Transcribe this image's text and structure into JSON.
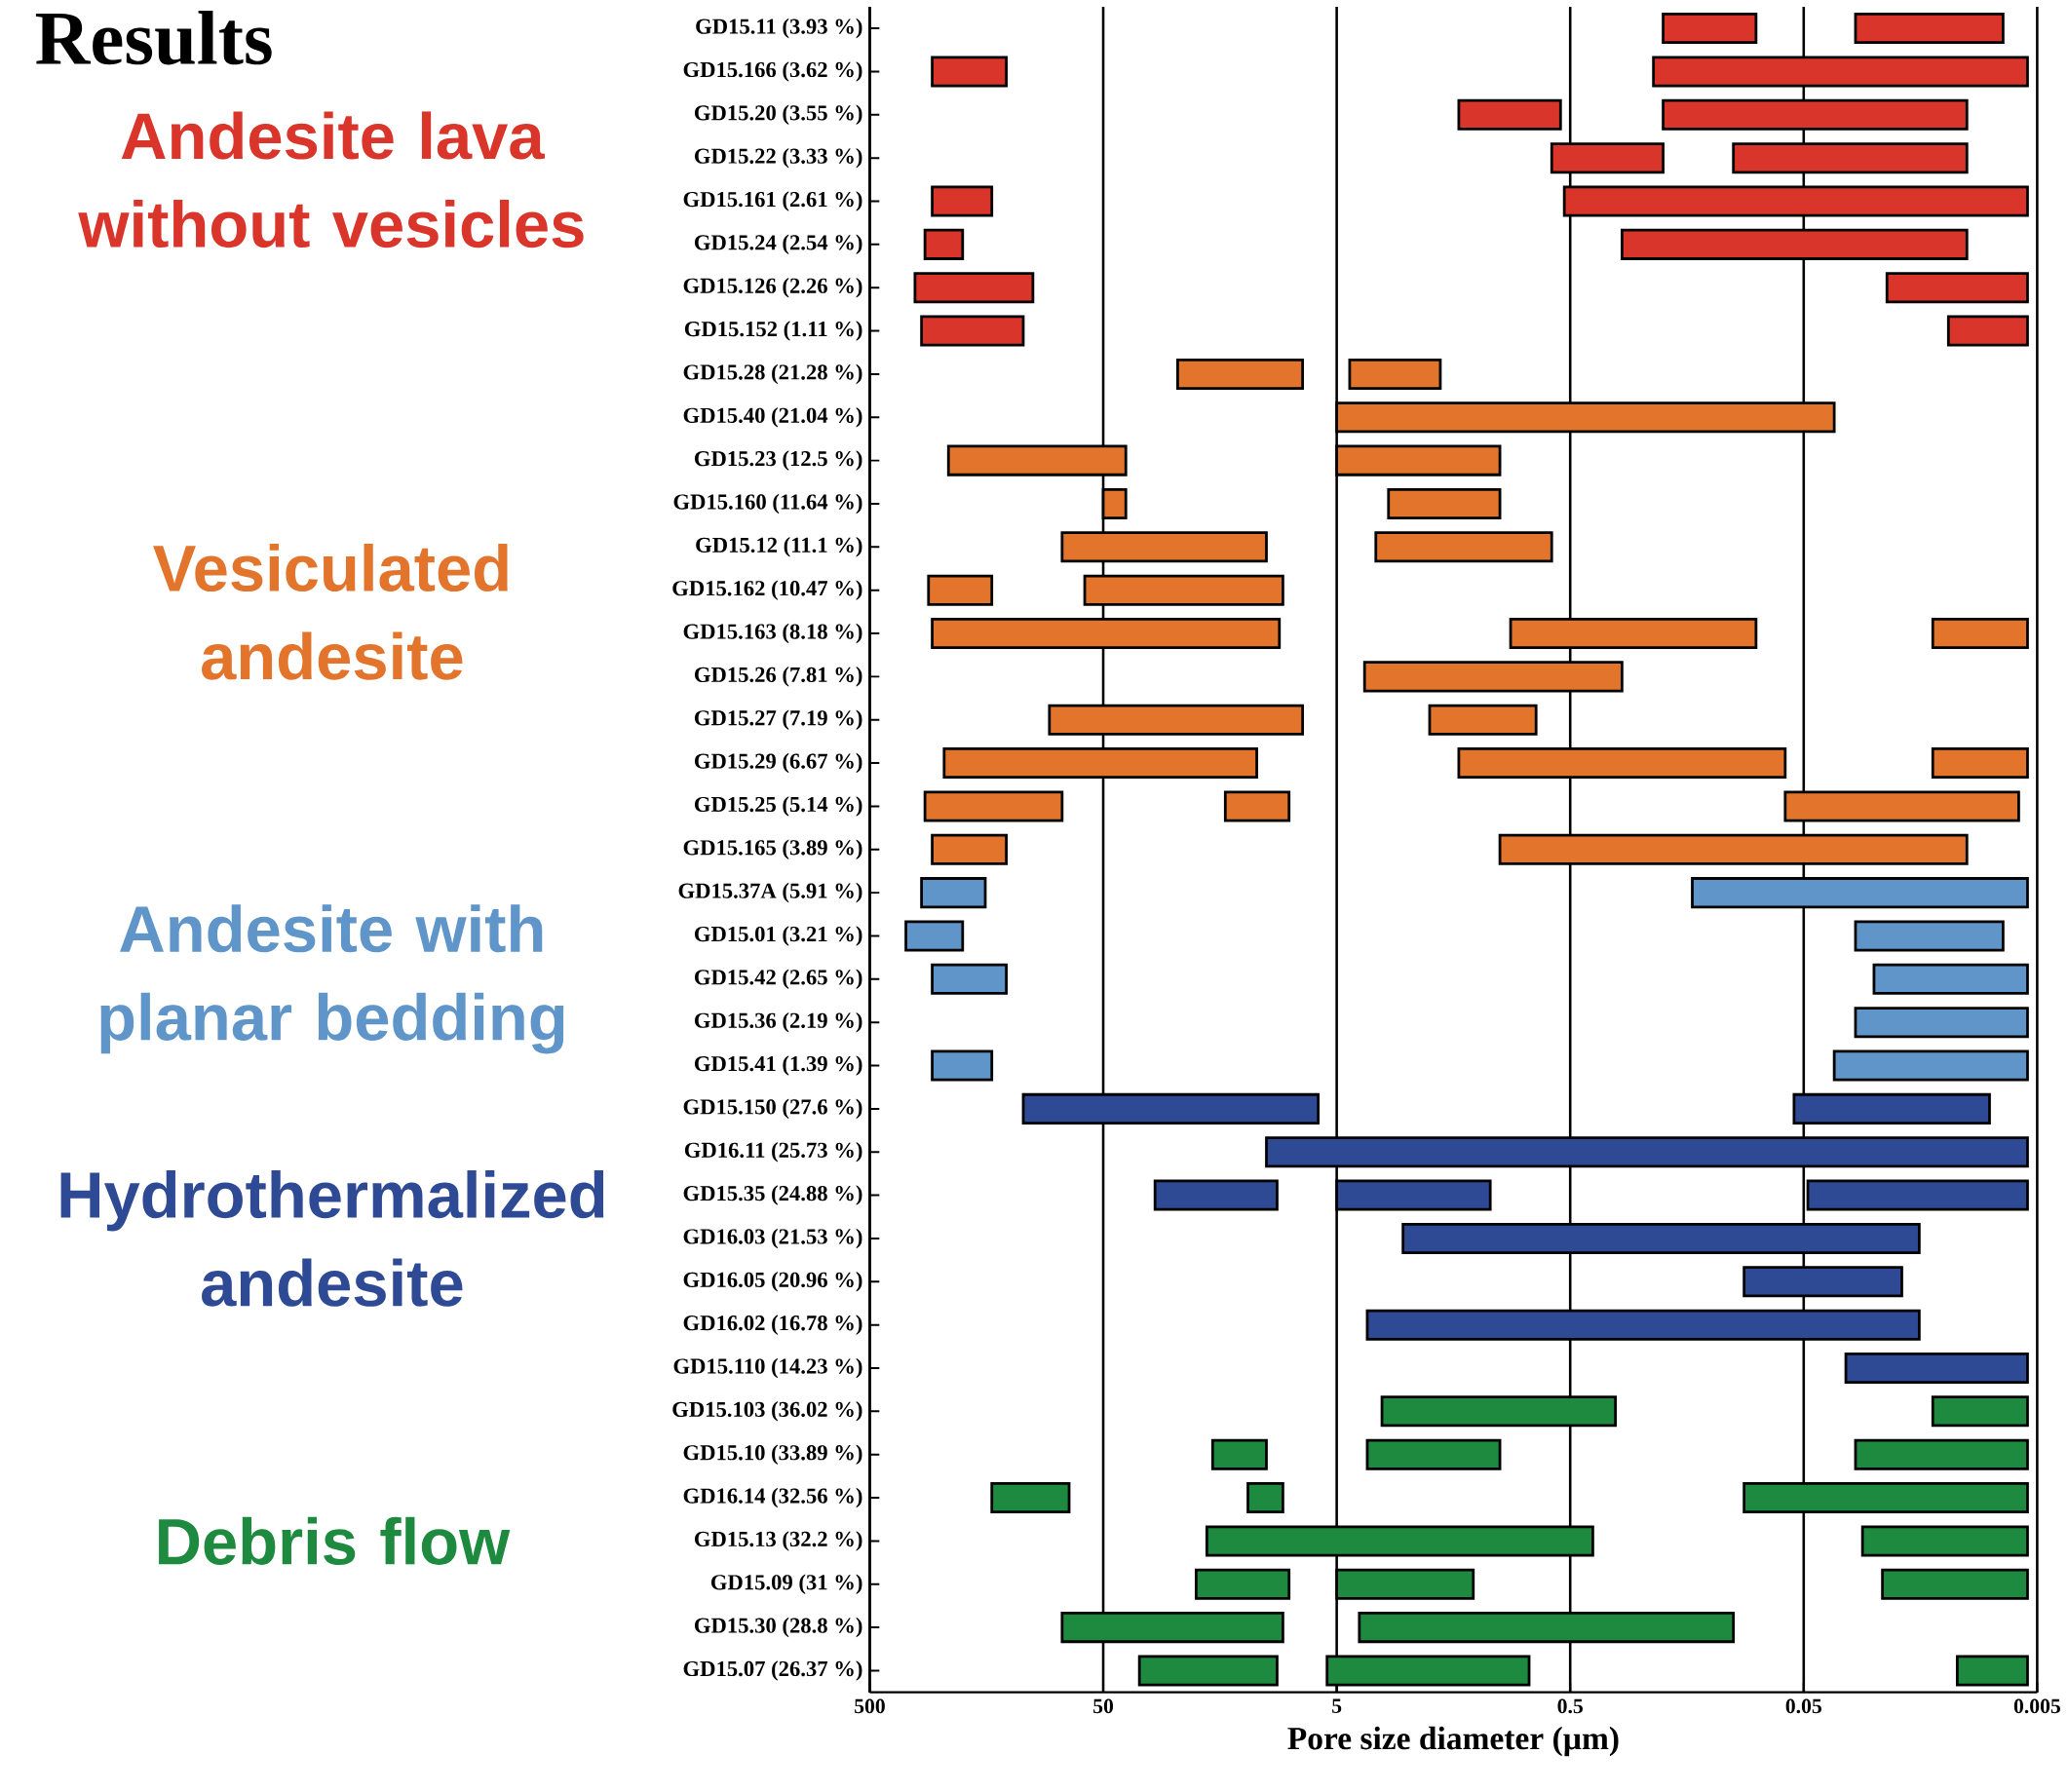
{
  "chart_data": {
    "type": "bar",
    "orientation": "horizontal",
    "title": "Results",
    "xlabel": "Pore size diameter (µm)",
    "categories": [
      "GD15.11 (3.93 %)",
      "GD15.166 (3.62 %)",
      "GD15.20 (3.55 %)",
      "GD15.22 (3.33 %)",
      "GD15.161 (2.61 %)",
      "GD15.24 (2.54 %)",
      "GD15.126 (2.26 %)",
      "GD15.152 (1.11 %)",
      "GD15.28 (21.28 %)",
      "GD15.40 (21.04 %)",
      "GD15.23 (12.5 %)",
      "GD15.160 (11.64 %)",
      "GD15.12 (11.1 %)",
      "GD15.162 (10.47 %)",
      "GD15.163 (8.18 %)",
      "GD15.26 (7.81 %)",
      "GD15.27 (7.19 %)",
      "GD15.29 (6.67 %)",
      "GD15.25 (5.14 %)",
      "GD15.165 (3.89 %)",
      "GD15.37A  (5.91 %)",
      "GD15.01 (3.21 %)",
      "GD15.42 (2.65 %)",
      "GD15.36 (2.19 %)",
      "GD15.41 (1.39 %)",
      "GD15.150 (27.6 %)",
      "GD16.11 (25.73 %)",
      "GD15.35 (24.88 %)",
      "GD16.03 (21.53 %)",
      "GD16.05 (20.96 %)",
      "GD16.02 (16.78 %)",
      "GD15.110 (14.23 %)",
      "GD15.103 (36.02 %)",
      "GD15.10 (33.89 %)",
      "GD16.14 (32.56 %)",
      "GD15.13 (32.2 %)",
      "GD15.09 (31 %)",
      "GD15.30 (28.8 %)",
      "GD15.07 (26.37 %)"
    ],
    "series": [
      {
        "colors": [
          "#d9352b",
          "#d9352b",
          "#d9352b",
          "#d9352b",
          "#d9352b",
          "#d9352b",
          "#d9352b",
          "#d9352b",
          "#e2742c",
          "#e2742c",
          "#e2742c",
          "#e2742c",
          "#e2742c",
          "#e2742c",
          "#e2742c",
          "#e2742c",
          "#e2742c",
          "#e2742c",
          "#e2742c",
          "#e2742c",
          "#5f95c9",
          "#5f95c9",
          "#5f95c9",
          "#5f95c9",
          "#5f95c9",
          "#2f4a94",
          "#2f4a94",
          "#2f4a94",
          "#2f4a94",
          "#2f4a94",
          "#2f4a94",
          "#2f4a94",
          "#1e8a3f",
          "#1e8a3f",
          "#1e8a3f",
          "#1e8a3f",
          "#1e8a3f",
          "#1e8a3f",
          "#1e8a3f"
        ],
        "base": [
          0.08,
          130,
          0.55,
          0.2,
          150,
          200,
          100,
          110,
          7,
          0.037,
          40,
          40,
          10,
          150,
          8.8,
          0.3,
          7,
          11,
          75,
          130,
          160,
          200,
          130,
          0.0055,
          150,
          6,
          0.0055,
          9,
          0.016,
          0.019,
          0.016,
          0.0055,
          0.32,
          10,
          70,
          0.4,
          8,
          8.5,
          9
        ],
        "values": [
          0.12,
          140,
          0.95,
          0.4,
          120,
          90,
          220,
          190,
          17,
          4.963,
          190,
          10,
          65,
          130,
          261.2,
          3.5,
          78,
          229,
          215,
          140,
          140,
          150,
          140,
          0.0245,
          120,
          104,
          9.9945,
          21,
          2.584,
          0.071,
          3.684,
          0.0275,
          2.88,
          7,
          80,
          17.6,
          12,
          66.5,
          26
        ]
      },
      {
        "colors": [
          "#d9352b",
          "#d9352b",
          "#d9352b",
          "#d9352b",
          "#d9352b",
          "#d9352b",
          "#d9352b",
          "#d9352b",
          "#e2742c",
          "#e2742c",
          "#e2742c",
          "#e2742c",
          "#e2742c",
          "#e2742c",
          "#e2742c",
          "#e2742c",
          "#e2742c",
          "#e2742c",
          "#e2742c",
          "#e2742c",
          "#5f95c9",
          "#5f95c9",
          "#5f95c9",
          "#5f95c9",
          "#5f95c9",
          "#2f4a94",
          "#2f4a94",
          "#2f4a94",
          "#2f4a94",
          "#2f4a94",
          "#2f4a94",
          "#2f4a94",
          "#1e8a3f",
          "#1e8a3f",
          "#1e8a3f",
          "#1e8a3f",
          "#1e8a3f",
          "#1e8a3f",
          "#1e8a3f"
        ],
        "base": [
          0.007,
          0.0055,
          0.01,
          0.01,
          0.0055,
          0.01,
          0.0055,
          0.0055,
          1.8,
          null,
          1,
          1,
          0.6,
          8.5,
          0.08,
          null,
          0.7,
          0.06,
          8,
          0.01,
          0.0055,
          0.007,
          0.0055,
          null,
          0.0055,
          0.008,
          null,
          1.1,
          null,
          null,
          null,
          null,
          0.0055,
          1,
          8.5,
          0.0055,
          1.3,
          0.1,
          0.75
        ],
        "values": [
          0.023,
          0.2145,
          0.19,
          0.09,
          0.5245,
          0.29,
          0.0165,
          0.0065,
          2.6,
          null,
          4,
          2,
          2.8,
          51.5,
          0.82,
          null,
          1.3,
          1.44,
          7,
          0.99,
          0.1445,
          0.023,
          0.0195,
          null,
          0.0315,
          0.047,
          null,
          3.9,
          null,
          null,
          null,
          null,
          0.0085,
          2.7,
          3.5,
          0.0225,
          3.7,
          3.9,
          4.75
        ]
      },
      {
        "colors": [
          "#d9352b",
          "#d9352b",
          "#d9352b",
          "#d9352b",
          "#d9352b",
          "#d9352b",
          "#d9352b",
          "#d9352b",
          "#e2742c",
          "#e2742c",
          "#e2742c",
          "#e2742c",
          "#e2742c",
          "#e2742c",
          "#e2742c",
          "#e2742c",
          "#e2742c",
          "#e2742c",
          "#e2742c",
          "#e2742c",
          "#5f95c9",
          "#5f95c9",
          "#5f95c9",
          "#5f95c9",
          "#5f95c9",
          "#2f4a94",
          "#2f4a94",
          "#2f4a94",
          "#2f4a94",
          "#2f4a94",
          "#2f4a94",
          "#2f4a94",
          "#1e8a3f",
          "#1e8a3f",
          "#1e8a3f",
          "#1e8a3f",
          "#1e8a3f",
          "#1e8a3f",
          "#1e8a3f"
        ],
        "base": [
          null,
          null,
          null,
          null,
          null,
          null,
          null,
          null,
          null,
          null,
          null,
          null,
          null,
          null,
          0.0055,
          null,
          null,
          0.0055,
          0.006,
          null,
          null,
          null,
          null,
          null,
          null,
          null,
          null,
          0.0055,
          null,
          null,
          null,
          null,
          null,
          0.0055,
          0.0055,
          null,
          0.0055,
          null,
          0.0055
        ],
        "values": [
          null,
          null,
          null,
          null,
          null,
          null,
          null,
          null,
          null,
          null,
          null,
          null,
          null,
          null,
          0.0085,
          null,
          null,
          0.0085,
          0.054,
          null,
          null,
          null,
          null,
          null,
          null,
          null,
          null,
          0.0425,
          null,
          null,
          null,
          null,
          null,
          0.0245,
          0.0845,
          null,
          0.0175,
          null,
          0.0055
        ]
      }
    ],
    "log": "x",
    "xlim": [
      500,
      0.005
    ],
    "xticks": [
      500,
      50,
      5,
      0.5,
      0.05,
      0.005
    ],
    "grid": "x",
    "annotations": [
      "Andesite lava without vesicles",
      "Vesiculated andesite",
      "Andesite with planar bedding",
      "Hydrothermalized andesite",
      "Debris flow"
    ]
  }
}
